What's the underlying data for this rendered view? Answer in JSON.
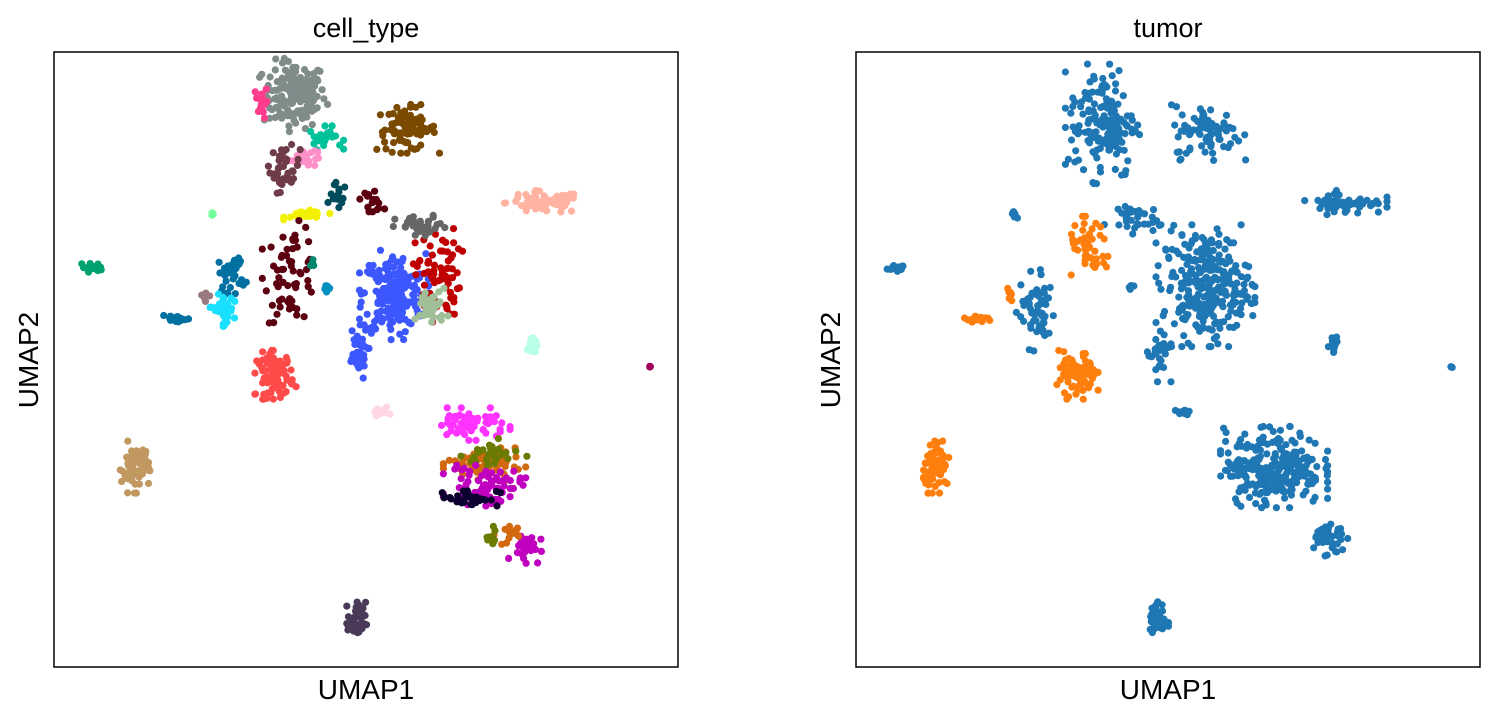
{
  "chart_data": [
    {
      "type": "scatter",
      "title": "cell_type",
      "xlabel": "UMAP1",
      "ylabel": "UMAP2",
      "grid": false,
      "legend": "none",
      "xlim": [
        0,
        100
      ],
      "ylim": [
        0,
        100
      ],
      "clusters": [
        {
          "color": "#7f8c8a",
          "center": [
            38.5,
            93
          ],
          "spread": [
            4.2,
            4.5
          ],
          "n": 160
        },
        {
          "color": "#ff3b8d",
          "center": [
            33.3,
            92
          ],
          "spread": [
            0.8,
            2.2
          ],
          "n": 20
        },
        {
          "color": "#00c29a",
          "center": [
            43.5,
            86
          ],
          "spread": [
            2.2,
            1.5
          ],
          "n": 25
        },
        {
          "color": "#ff8fc8",
          "center": [
            40,
            83
          ],
          "spread": [
            1.8,
            1.5
          ],
          "n": 20
        },
        {
          "color": "#6e3b48",
          "center": [
            37,
            81
          ],
          "spread": [
            2.0,
            3.0
          ],
          "n": 40
        },
        {
          "color": "#7a4a00",
          "center": [
            56.5,
            87.5
          ],
          "spread": [
            4.0,
            3.0
          ],
          "n": 80
        },
        {
          "color": "#ffb3a0",
          "center": [
            78.5,
            75.5
          ],
          "spread": [
            5.0,
            1.5
          ],
          "n": 70
        },
        {
          "color": "#004b5b",
          "center": [
            45.5,
            76.5
          ],
          "spread": [
            1.2,
            1.8
          ],
          "n": 15
        },
        {
          "color": "#f2f200",
          "center": [
            40.5,
            73.5
          ],
          "spread": [
            2.8,
            0.6
          ],
          "n": 28
        },
        {
          "color": "#5c0010",
          "center": [
            38,
            64
          ],
          "spread": [
            3.5,
            6.5
          ],
          "n": 60
        },
        {
          "color": "#5c0010",
          "center": [
            51,
            76
          ],
          "spread": [
            1.5,
            1.5
          ],
          "n": 15
        },
        {
          "color": "#3d57ff",
          "center": [
            54.5,
            60.5
          ],
          "spread": [
            4.2,
            5.5
          ],
          "n": 200
        },
        {
          "color": "#3d57ff",
          "center": [
            48.5,
            51
          ],
          "spread": [
            1.5,
            3.5
          ],
          "n": 40
        },
        {
          "color": "#c00000",
          "center": [
            61.5,
            64
          ],
          "spread": [
            3.0,
            6.0
          ],
          "n": 70
        },
        {
          "color": "#666666",
          "center": [
            59,
            71.5
          ],
          "spread": [
            3.5,
            1.5
          ],
          "n": 40
        },
        {
          "color": "#a0bf98",
          "center": [
            60.5,
            58.5
          ],
          "spread": [
            2.0,
            2.5
          ],
          "n": 40
        },
        {
          "color": "#0070a0",
          "center": [
            28.5,
            64
          ],
          "spread": [
            1.8,
            2.5
          ],
          "n": 30
        },
        {
          "color": "#1ae0ff",
          "center": [
            27,
            58
          ],
          "spread": [
            1.5,
            2.0
          ],
          "n": 45
        },
        {
          "color": "#9a7a80",
          "center": [
            24.5,
            60.5
          ],
          "spread": [
            0.8,
            0.8
          ],
          "n": 8
        },
        {
          "color": "#0070a0",
          "center": [
            19.5,
            56.5
          ],
          "spread": [
            2.0,
            0.5
          ],
          "n": 15
        },
        {
          "color": "#00a070",
          "center": [
            6,
            65
          ],
          "spread": [
            1.5,
            0.6
          ],
          "n": 14
        },
        {
          "color": "#00876b",
          "center": [
            41.5,
            65.5
          ],
          "spread": [
            0.3,
            0.8
          ],
          "n": 5
        },
        {
          "color": "#70ff98",
          "center": [
            25.5,
            73.5
          ],
          "spread": [
            0.4,
            0.5
          ],
          "n": 5
        },
        {
          "color": "#0090c0",
          "center": [
            44,
            61.5
          ],
          "spread": [
            0.6,
            0.6
          ],
          "n": 6
        },
        {
          "color": "#ff4a4a",
          "center": [
            35.5,
            47.5
          ],
          "spread": [
            2.5,
            3.0
          ],
          "n": 80
        },
        {
          "color": "#c09860",
          "center": [
            13,
            32.5
          ],
          "spread": [
            1.8,
            3.2
          ],
          "n": 70
        },
        {
          "color": "#ff33ff",
          "center": [
            66.5,
            39.5
          ],
          "spread": [
            5.0,
            2.0
          ],
          "n": 60
        },
        {
          "color": "#d2690f",
          "center": [
            69,
            33
          ],
          "spread": [
            5.0,
            2.0
          ],
          "n": 70
        },
        {
          "color": "#6b7a00",
          "center": [
            70.5,
            34.5
          ],
          "spread": [
            4.0,
            2.0
          ],
          "n": 30
        },
        {
          "color": "#bf00bf",
          "center": [
            69,
            29.5
          ],
          "spread": [
            5.0,
            2.5
          ],
          "n": 70
        },
        {
          "color": "#0d0030",
          "center": [
            66.5,
            27.5
          ],
          "spread": [
            4.0,
            1.2
          ],
          "n": 35
        },
        {
          "color": "#bf00bf",
          "center": [
            75.5,
            19.5
          ],
          "spread": [
            2.0,
            2.0
          ],
          "n": 25
        },
        {
          "color": "#d2690f",
          "center": [
            72.5,
            21.5
          ],
          "spread": [
            1.5,
            1.5
          ],
          "n": 15
        },
        {
          "color": "#6b7a00",
          "center": [
            70,
            21
          ],
          "spread": [
            1.0,
            1.5
          ],
          "n": 12
        },
        {
          "color": "#ffd6e6",
          "center": [
            52.5,
            41.5
          ],
          "spread": [
            1.0,
            0.6
          ],
          "n": 10
        },
        {
          "color": "#b8ffe6",
          "center": [
            76.5,
            52
          ],
          "spread": [
            0.8,
            1.4
          ],
          "n": 12
        },
        {
          "color": "#a0005a",
          "center": [
            95.5,
            48.8
          ],
          "spread": [
            0.2,
            0.2
          ],
          "n": 3
        },
        {
          "color": "#4a3a58",
          "center": [
            48.5,
            7.5
          ],
          "spread": [
            1.2,
            2.5
          ],
          "n": 40
        }
      ]
    },
    {
      "type": "scatter",
      "title": "tumor",
      "xlabel": "UMAP1",
      "ylabel": "UMAP2",
      "grid": false,
      "legend": "none",
      "xlim": [
        0,
        100
      ],
      "ylim": [
        0,
        100
      ],
      "clusters": [
        {
          "color": "#1f77b4",
          "center": [
            39.5,
            88.5
          ],
          "spread": [
            4.5,
            7.5
          ],
          "n": 160
        },
        {
          "color": "#1f77b4",
          "center": [
            56.5,
            87
          ],
          "spread": [
            4.5,
            3.5
          ],
          "n": 80
        },
        {
          "color": "#1f77b4",
          "center": [
            78.5,
            75.5
          ],
          "spread": [
            5.0,
            1.5
          ],
          "n": 60
        },
        {
          "color": "#1f77b4",
          "center": [
            56,
            62
          ],
          "spread": [
            6.0,
            7.5
          ],
          "n": 280
        },
        {
          "color": "#1f77b4",
          "center": [
            48.5,
            51
          ],
          "spread": [
            1.5,
            3.5
          ],
          "n": 30
        },
        {
          "color": "#1f77b4",
          "center": [
            44,
            73
          ],
          "spread": [
            3.5,
            2.0
          ],
          "n": 30
        },
        {
          "color": "#1f77b4",
          "center": [
            29,
            58
          ],
          "spread": [
            2.5,
            5.0
          ],
          "n": 60
        },
        {
          "color": "#1f77b4",
          "center": [
            6,
            65
          ],
          "spread": [
            1.5,
            0.6
          ],
          "n": 14
        },
        {
          "color": "#1f77b4",
          "center": [
            25.5,
            73.5
          ],
          "spread": [
            0.4,
            0.5
          ],
          "n": 5
        },
        {
          "color": "#1f77b4",
          "center": [
            44,
            61.5
          ],
          "spread": [
            0.6,
            0.6
          ],
          "n": 6
        },
        {
          "color": "#1f77b4",
          "center": [
            76.5,
            52
          ],
          "spread": [
            0.8,
            1.4
          ],
          "n": 12
        },
        {
          "color": "#1f77b4",
          "center": [
            95.5,
            48.8
          ],
          "spread": [
            0.2,
            0.2
          ],
          "n": 3
        },
        {
          "color": "#1f77b4",
          "center": [
            67,
            32.5
          ],
          "spread": [
            6.5,
            5.0
          ],
          "n": 260
        },
        {
          "color": "#1f77b4",
          "center": [
            75.5,
            21
          ],
          "spread": [
            2.5,
            2.5
          ],
          "n": 40
        },
        {
          "color": "#1f77b4",
          "center": [
            52.5,
            41.5
          ],
          "spread": [
            1.0,
            0.6
          ],
          "n": 10
        },
        {
          "color": "#1f77b4",
          "center": [
            48.5,
            7.5
          ],
          "spread": [
            1.2,
            2.5
          ],
          "n": 40
        },
        {
          "color": "#ff7f0e",
          "center": [
            35.5,
            47.5
          ],
          "spread": [
            2.5,
            3.0
          ],
          "n": 80
        },
        {
          "color": "#ff7f0e",
          "center": [
            13,
            32.5
          ],
          "spread": [
            1.8,
            3.2
          ],
          "n": 70
        },
        {
          "color": "#ff7f0e",
          "center": [
            37.5,
            68
          ],
          "spread": [
            3.0,
            4.0
          ],
          "n": 45
        },
        {
          "color": "#ff7f0e",
          "center": [
            19.5,
            56.5
          ],
          "spread": [
            2.0,
            0.5
          ],
          "n": 15
        },
        {
          "color": "#ff7f0e",
          "center": [
            24.5,
            60.5
          ],
          "spread": [
            0.8,
            0.8
          ],
          "n": 8
        }
      ]
    }
  ]
}
